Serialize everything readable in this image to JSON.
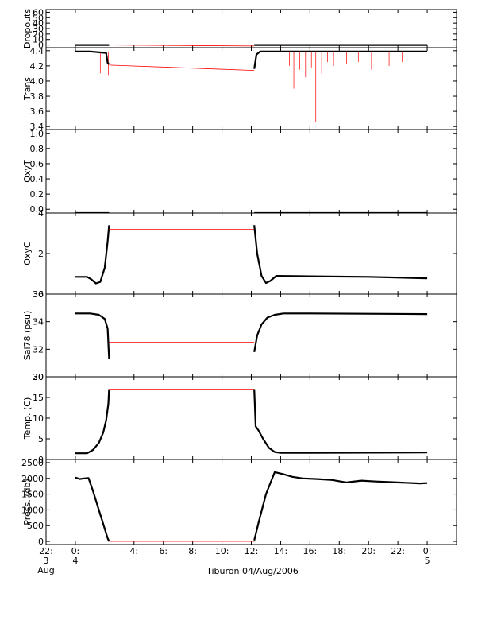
{
  "chart_data": {
    "type": "line",
    "xlabel": "Tiburon 04/Aug/2006",
    "xlim": [
      -2,
      26
    ],
    "x_ticks": [
      {
        "v": -2,
        "l1": "22:",
        "l2": "3",
        "l3": "Aug"
      },
      {
        "v": 0,
        "l1": "0:",
        "l2": "4",
        "l3": ""
      },
      {
        "v": 4,
        "l1": "4:",
        "l2": "",
        "l3": ""
      },
      {
        "v": 6,
        "l1": "6:",
        "l2": "",
        "l3": ""
      },
      {
        "v": 8,
        "l1": "8:",
        "l2": "",
        "l3": ""
      },
      {
        "v": 10,
        "l1": "10:",
        "l2": "",
        "l3": ""
      },
      {
        "v": 12,
        "l1": "12:",
        "l2": "",
        "l3": ""
      },
      {
        "v": 14,
        "l1": "14:",
        "l2": "",
        "l3": ""
      },
      {
        "v": 16,
        "l1": "16:",
        "l2": "",
        "l3": ""
      },
      {
        "v": 18,
        "l1": "18:",
        "l2": "",
        "l3": ""
      },
      {
        "v": 20,
        "l1": "20:",
        "l2": "",
        "l3": ""
      },
      {
        "v": 22,
        "l1": "22:",
        "l2": "",
        "l3": ""
      },
      {
        "v": 24,
        "l1": "0:",
        "l2": "5",
        "l3": ""
      }
    ],
    "colors": {
      "measured": "#000000",
      "interpolated": "#ff0000"
    },
    "gap": [
      2.3,
      12.2
    ],
    "panels": [
      {
        "ylabel": "Dropouts",
        "ylim": [
          -5,
          65
        ],
        "yticks": [
          {
            "v": 60,
            "l": "60"
          },
          {
            "v": 50,
            "l": "50"
          },
          {
            "v": 40,
            "l": "40"
          },
          {
            "v": 30,
            "l": "30"
          },
          {
            "v": 20,
            "l": "20"
          },
          {
            "v": 10,
            "l": "10"
          },
          {
            "v": 0,
            "l": "0"
          }
        ],
        "series": [
          {
            "style": "black",
            "x": [
              0,
              2.3
            ],
            "y": [
              0,
              0
            ]
          },
          {
            "style": "red",
            "x": [
              2.3,
              12.2
            ],
            "y": [
              0,
              -2
            ]
          },
          {
            "style": "black",
            "x": [
              12.2,
              24
            ],
            "y": [
              0,
              0
            ]
          }
        ]
      },
      {
        "ylabel": "Trans",
        "ylim": [
          3.36,
          4.44
        ],
        "yticks": [
          {
            "v": 4.4,
            "l": "4.4"
          },
          {
            "v": 4.2,
            "l": "4.2"
          },
          {
            "v": 4.0,
            "l": "4.0"
          },
          {
            "v": 3.8,
            "l": "3.8"
          },
          {
            "v": 3.6,
            "l": "3.6"
          },
          {
            "v": 3.4,
            "l": "3.4"
          }
        ],
        "series": [
          {
            "style": "black",
            "x": [
              0,
              1,
              2.1,
              2.2,
              2.3
            ],
            "y": [
              4.39,
              4.39,
              4.37,
              4.24,
              4.22
            ]
          },
          {
            "style": "red",
            "x": [
              2.3,
              12.2
            ],
            "y": [
              4.21,
              4.14
            ]
          },
          {
            "style": "black",
            "x": [
              12.2,
              12.35,
              12.6,
              14,
              24
            ],
            "y": [
              4.16,
              4.35,
              4.39,
              4.39,
              4.39
            ]
          }
        ],
        "spikes": [
          {
            "x": 1.7,
            "y": 4.1
          },
          {
            "x": 2.25,
            "y": 4.08
          },
          {
            "x": 14.6,
            "y": 4.2
          },
          {
            "x": 14.9,
            "y": 3.9
          },
          {
            "x": 15.3,
            "y": 4.15
          },
          {
            "x": 15.7,
            "y": 4.05
          },
          {
            "x": 16.1,
            "y": 4.18
          },
          {
            "x": 16.4,
            "y": 3.46
          },
          {
            "x": 16.8,
            "y": 4.1
          },
          {
            "x": 17.2,
            "y": 4.25
          },
          {
            "x": 17.6,
            "y": 4.2
          },
          {
            "x": 18.5,
            "y": 4.22
          },
          {
            "x": 19.3,
            "y": 4.25
          },
          {
            "x": 20.2,
            "y": 4.15
          },
          {
            "x": 21.4,
            "y": 4.2
          },
          {
            "x": 22.3,
            "y": 4.25
          }
        ]
      },
      {
        "ylabel": "OxyT",
        "ylim": [
          -0.05,
          1.05
        ],
        "yticks": [
          {
            "v": 1.0,
            "l": "1.0"
          },
          {
            "v": 0.8,
            "l": "0.8"
          },
          {
            "v": 0.6,
            "l": "0.6"
          },
          {
            "v": 0.4,
            "l": "0.4"
          },
          {
            "v": 0.2,
            "l": "0.2"
          },
          {
            "v": 0.0,
            "l": "0.0"
          }
        ],
        "series": [
          {
            "style": "black",
            "x": [
              0,
              2.3
            ],
            "y": [
              -0.05,
              -0.05
            ]
          },
          {
            "style": "red",
            "x": [
              2.3,
              12.2
            ],
            "y": [
              -0.05,
              -0.05
            ]
          },
          {
            "style": "black",
            "x": [
              12.2,
              24
            ],
            "y": [
              -0.05,
              -0.05
            ]
          }
        ]
      },
      {
        "ylabel": "OxyC",
        "ylim": [
          0,
          4
        ],
        "yticks": [
          {
            "v": 4,
            "l": "4"
          },
          {
            "v": 2,
            "l": "2"
          },
          {
            "v": 0,
            "l": "0"
          }
        ],
        "series": [
          {
            "style": "black",
            "x": [
              0,
              0.8,
              1.1,
              1.4,
              1.7,
              2.0,
              2.2,
              2.3
            ],
            "y": [
              0.85,
              0.85,
              0.72,
              0.53,
              0.6,
              1.3,
              2.6,
              3.4
            ]
          },
          {
            "style": "red",
            "x": [
              2.3,
              12.2
            ],
            "y": [
              3.2,
              3.2
            ]
          },
          {
            "style": "black",
            "x": [
              12.2,
              12.4,
              12.7,
              13.0,
              13.3,
              13.7,
              16,
              20,
              24
            ],
            "y": [
              3.4,
              2.0,
              0.9,
              0.55,
              0.65,
              0.9,
              0.88,
              0.85,
              0.78
            ]
          }
        ]
      },
      {
        "ylabel": "Sal78 (psu)",
        "ylim": [
          30,
          36
        ],
        "yticks": [
          {
            "v": 36,
            "l": "36"
          },
          {
            "v": 34,
            "l": "34"
          },
          {
            "v": 32,
            "l": "32"
          },
          {
            "v": 30,
            "l": "30"
          }
        ],
        "series": [
          {
            "style": "black",
            "x": [
              0,
              1.0,
              1.6,
              2.0,
              2.2,
              2.3
            ],
            "y": [
              34.6,
              34.6,
              34.5,
              34.2,
              33.5,
              31.3
            ]
          },
          {
            "style": "red",
            "x": [
              2.3,
              12.2
            ],
            "y": [
              32.5,
              32.5
            ]
          },
          {
            "style": "black",
            "x": [
              12.2,
              12.4,
              12.7,
              13.1,
              13.6,
              14.2,
              16,
              24
            ],
            "y": [
              31.8,
              33.0,
              33.8,
              34.3,
              34.5,
              34.6,
              34.6,
              34.55
            ]
          }
        ]
      },
      {
        "ylabel": "Temp. (C)",
        "ylim": [
          0,
          20
        ],
        "yticks": [
          {
            "v": 20,
            "l": "20"
          },
          {
            "v": 15,
            "l": "15"
          },
          {
            "v": 10,
            "l": "10"
          },
          {
            "v": 5,
            "l": "5"
          },
          {
            "v": 0,
            "l": "0"
          }
        ],
        "series": [
          {
            "style": "black",
            "x": [
              0,
              0.8,
              1.2,
              1.6,
              1.9,
              2.1,
              2.25,
              2.3
            ],
            "y": [
              1.5,
              1.5,
              2.3,
              4.0,
              6.5,
              9.5,
              13.5,
              17
            ]
          },
          {
            "style": "red",
            "x": [
              2.3,
              12.2
            ],
            "y": [
              17,
              17
            ]
          },
          {
            "style": "black",
            "x": [
              12.2,
              12.3,
              12.5,
              12.8,
              13.2,
              13.6,
              14.0,
              16,
              24
            ],
            "y": [
              17,
              8.0,
              7.0,
              5.0,
              2.8,
              1.8,
              1.6,
              1.6,
              1.7
            ]
          }
        ]
      },
      {
        "ylabel": "Press. (db)",
        "ylim": [
          -100,
          2600
        ],
        "yticks": [
          {
            "v": 2500,
            "l": "2500"
          },
          {
            "v": 2000,
            "l": "2000"
          },
          {
            "v": 1500,
            "l": "1500"
          },
          {
            "v": 1000,
            "l": "1000"
          },
          {
            "v": 500,
            "l": "500"
          },
          {
            "v": 0,
            "l": "0"
          }
        ],
        "series": [
          {
            "style": "black",
            "x": [
              0,
              0.3,
              0.6,
              0.9,
              1.2,
              1.6,
              2.0,
              2.2,
              2.3
            ],
            "y": [
              2030,
              1980,
              2000,
              2010,
              1600,
              1000,
              400,
              100,
              0
            ]
          },
          {
            "style": "red",
            "x": [
              2.3,
              12.2
            ],
            "y": [
              0,
              0
            ]
          },
          {
            "style": "black",
            "x": [
              12.2,
              12.5,
              13.0,
              13.6,
              14.2,
              14.8,
              15.5,
              16.5,
              17.5,
              18.5,
              19.5,
              20.5,
              21.5,
              22.5,
              23.5,
              24
            ],
            "y": [
              30,
              600,
              1500,
              2200,
              2130,
              2050,
              2000,
              1980,
              1950,
              1870,
              1930,
              1900,
              1880,
              1860,
              1840,
              1850
            ]
          }
        ]
      }
    ]
  }
}
